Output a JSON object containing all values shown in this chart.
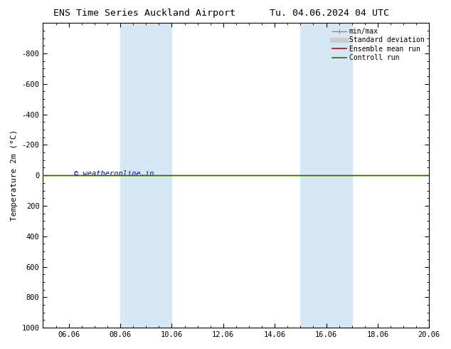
{
  "title": "ENS Time Series Auckland Airport",
  "title2": "Tu. 04.06.2024 04 UTC",
  "ylabel": "Temperature 2m (°C)",
  "ylim_top": -1000,
  "ylim_bottom": 1000,
  "yticks": [
    -800,
    -600,
    -400,
    -200,
    0,
    200,
    400,
    600,
    800,
    1000
  ],
  "xlim": [
    0,
    15
  ],
  "xtick_labels": [
    "06.06",
    "08.06",
    "10.06",
    "12.06",
    "14.06",
    "16.06",
    "18.06",
    "20.06"
  ],
  "xtick_positions": [
    1,
    3,
    5,
    7,
    9,
    11,
    13,
    15
  ],
  "shaded_regions": [
    {
      "x_start": 3,
      "x_end": 5
    },
    {
      "x_start": 10,
      "x_end": 12
    }
  ],
  "shaded_color": "#d6e8f5",
  "horizontal_line_y": 0,
  "red_line_color": "#cc0000",
  "green_line_color": "#336600",
  "watermark_text": "© weatheronline.in",
  "watermark_color": "#0000cc",
  "legend_items": [
    {
      "label": "min/max",
      "color": "#888888",
      "lw": 1.0,
      "style": "minmax"
    },
    {
      "label": "Standard deviation",
      "color": "#cccccc",
      "lw": 5,
      "style": "thick"
    },
    {
      "label": "Ensemble mean run",
      "color": "#cc0000",
      "lw": 1.2,
      "style": "line"
    },
    {
      "label": "Controll run",
      "color": "#336600",
      "lw": 1.2,
      "style": "line"
    }
  ],
  "bg_color": "#ffffff",
  "plot_bg_color": "#ffffff",
  "tick_fontsize": 7.5,
  "label_fontsize": 8,
  "title_fontsize": 9.5
}
